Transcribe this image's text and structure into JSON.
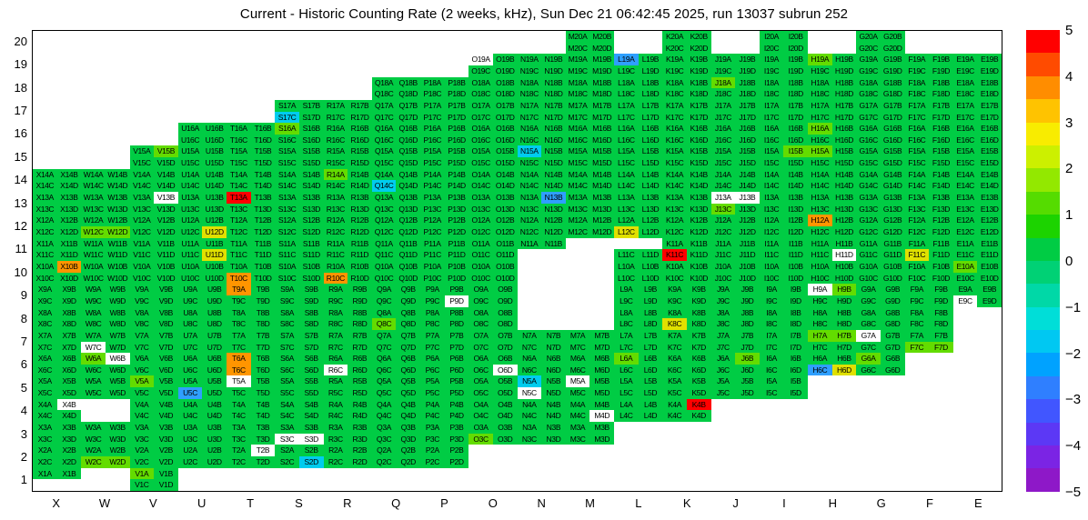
{
  "chart_data": {
    "type": "heatmap",
    "title": "Current - Historic Counting Rate (2 weeks, kHz), Sun Dec 21 06:42:45 2025, run 13037 subrun 252",
    "x_categories": [
      "X",
      "W",
      "V",
      "U",
      "T",
      "S",
      "R",
      "Q",
      "P",
      "O",
      "N",
      "M",
      "L",
      "K",
      "J",
      "I",
      "H",
      "G",
      "F",
      "E"
    ],
    "y_categories": [
      20,
      19,
      18,
      17,
      16,
      15,
      14,
      13,
      12,
      11,
      10,
      9,
      8,
      7,
      6,
      5,
      4,
      3,
      2,
      1
    ],
    "zlim": [
      -5,
      5
    ],
    "grid_on": false,
    "legend_position": "right-colorbar",
    "sub_letters": [
      "A",
      "B",
      "C",
      "D"
    ],
    "palette": {
      "g": "#00cc44",
      "G": "#63dc00",
      "y": "#e0e000",
      "o": "#ff9500",
      "r": "#ff0000",
      "c": "#00ccee",
      "b": "#2f9fff",
      "w": "#ffffff"
    },
    "palette_values_khz": {
      "g": 0,
      "G": 0.7,
      "y": 1.5,
      "o": 3.5,
      "r": 5,
      "c": -1.5,
      "b": -2.5,
      "w": null
    },
    "colorbar": {
      "tick_labels": [
        "5",
        "4",
        "3",
        "2",
        "1",
        "0",
        "−1",
        "−2",
        "−3",
        "−4",
        "−5"
      ],
      "bands_top_to_bottom": [
        "#ff0000",
        "#ff4b00",
        "#ff8d00",
        "#ffc300",
        "#f8ec00",
        "#ccf000",
        "#93e800",
        "#55dc00",
        "#1cd300",
        "#00cc44",
        "#00d175",
        "#00d8a7",
        "#00ded8",
        "#00c8f2",
        "#00a2ff",
        "#2f7fff",
        "#4156ff",
        "#5c38f5",
        "#7b24e4",
        "#8e18c8"
      ]
    },
    "cells": {
      "20": {
        "M": "gggg",
        "K": "gggg",
        "I": "gggg",
        "G": "gggg"
      },
      "19": {
        "O": "wggg",
        "N": "gggg",
        "M": "gggg",
        "L": "bggg",
        "K": "gggg",
        "J": "gggg",
        "I": "gggg",
        "H": "Gggg",
        "G": "gggg",
        "F": "gggg",
        "E": "gggg"
      },
      "18": {
        "Q": "gggg",
        "P": "gggg",
        "O": "gggg",
        "N": "gggg",
        "M": "gggg",
        "L": "gggg",
        "K": "gggg",
        "J": "Gggg",
        "I": "gggg",
        "H": "gggg",
        "G": "gggg",
        "F": "gggg",
        "E": "gggg"
      },
      "17": {
        "S": "ggcg",
        "R": "gggg",
        "Q": "gggg",
        "P": "gggg",
        "O": "gggg",
        "N": "gggg",
        "M": "gggg",
        "L": "gggg",
        "K": "gggg",
        "J": "gggg",
        "I": "gggg",
        "H": "gggg",
        "G": "gggg",
        "F": "gggg",
        "E": "gggg"
      },
      "16": {
        "U": "gggg",
        "T": "gggg",
        "S": "Gggg",
        "R": "gggg",
        "Q": "gggg",
        "P": "gggg",
        "O": "gggg",
        "N": "gggg",
        "M": "gggg",
        "L": "gggg",
        "K": "gggg",
        "J": "gggg",
        "I": "gggg",
        "H": "Gggg",
        "G": "gggg",
        "F": "gggg",
        "E": "gggg"
      },
      "15": {
        "V": "gGgg",
        "U": "gggg",
        "T": "gggg",
        "S": "gggg",
        "R": "gggg",
        "Q": "gggg",
        "P": "gggg",
        "O": "gggg",
        "N": "cggg",
        "M": "gggg",
        "L": "gggg",
        "K": "gggg",
        "J": "gggg",
        "I": "gGgg",
        "H": "Gggg",
        "G": "gggg",
        "F": "gggg",
        "E": "gggg"
      },
      "14": {
        "X": "gggg",
        "W": "gggg",
        "V": "gggg",
        "U": "gggg",
        "T": "gggg",
        "S": "gggg",
        "R": "Gggg",
        "Q": "ggcg",
        "P": "gggg",
        "O": "gggg",
        "N": "gggg",
        "M": "gggg",
        "L": "gggg",
        "K": "gggg",
        "J": "gggg",
        "I": "gggg",
        "H": "gggg",
        "G": "gggg",
        "F": "gggg",
        "E": "gggg"
      },
      "13": {
        "X": "gggg",
        "W": "gggg",
        "V": "gwgg",
        "U": "gggg",
        "T": "rggg",
        "S": "gggg",
        "R": "gggg",
        "Q": "gggg",
        "P": "gggg",
        "O": "gggg",
        "N": "gbgg",
        "M": "gggg",
        "L": "gggg",
        "K": "gggg",
        "J": "wwGg",
        "I": "gggg",
        "H": "gggg",
        "G": "gggg",
        "F": "gggg",
        "E": "gggg"
      },
      "12": {
        "X": "gggg",
        "W": "ggGG",
        "V": "gggg",
        "U": "gggy",
        "T": "gggg",
        "S": "gggg",
        "R": "gggg",
        "Q": "gggg",
        "P": "gggg",
        "O": "gggg",
        "N": "gggg",
        "M": "gggg",
        "L": "ggyg",
        "K": "gggg",
        "J": "gggg",
        "I": "gggg",
        "H": "oggg",
        "G": "gggg",
        "F": "gggg",
        "E": "gggg"
      },
      "11": {
        "X": "gggg",
        "W": "gggg",
        "V": "gggg",
        "U": "gggy",
        "T": "gggg",
        "S": "gggg",
        "R": "gggg",
        "Q": "gggg",
        "P": "gggg",
        "O": "gggg",
        "N": "gg..",
        "L": "..gg",
        "K": "ggrg",
        "J": "gggg",
        "I": "gggg",
        "H": "gggw",
        "G": "gggg",
        "F": "ggyg",
        "E": "gggg"
      },
      "10": {
        "X": "gogg",
        "W": "gggg",
        "V": "gggg",
        "U": "gggg",
        "T": "ggog",
        "S": "gggg",
        "R": "ggog",
        "Q": "gggg",
        "P": "gggg",
        "O": "gggg",
        "L": "gggg",
        "K": "gggg",
        "J": "gggg",
        "I": "gggg",
        "H": "gggg",
        "G": "gggg",
        "F": "gggg",
        "E": "Gggg"
      },
      "9": {
        "X": "gggg",
        "W": "gggg",
        "V": "gggg",
        "U": "gggg",
        "T": "oggg",
        "S": "gggg",
        "R": "gggg",
        "Q": "gggg",
        "P": "gggw",
        "O": "gggg",
        "L": "gggg",
        "K": "gggg",
        "J": "gggg",
        "I": "gggg",
        "H": "wGgg",
        "G": "gggg",
        "F": "gggg",
        "E": "ggwg"
      },
      "8": {
        "X": "gggg",
        "W": "gggg",
        "V": "gggg",
        "U": "gggg",
        "T": "gggg",
        "S": "gggg",
        "R": "gggg",
        "Q": "ggGg",
        "P": "gggg",
        "O": "gggg",
        "L": "gggg",
        "K": "ggyg",
        "J": "gggg",
        "I": "gggg",
        "H": "gggg",
        "G": "gggg",
        "F": "gggg"
      },
      "7": {
        "X": "gggg",
        "W": "ggwg",
        "V": "gggg",
        "U": "gggg",
        "T": "gggg",
        "S": "gggg",
        "R": "gggg",
        "Q": "gggg",
        "P": "gggg",
        "O": "gggg",
        "N": "gggg",
        "M": "gggg",
        "L": "gggg",
        "K": "gggg",
        "J": "gggg",
        "I": "gggg",
        "H": "GGgg",
        "G": "wggg",
        "F": "ggGG"
      },
      "6": {
        "X": "gggg",
        "W": "Gwgg",
        "V": "gggg",
        "U": "gggg",
        "T": "ogog",
        "S": "gggg",
        "R": "ggwg",
        "Q": "gggg",
        "P": "gggg",
        "O": "gggw",
        "N": "gggg",
        "M": "gggg",
        "L": "Gggg",
        "K": "gggg",
        "J": "gGgg",
        "I": "gggg",
        "H": "ggby",
        "G": "Gggg"
      },
      "5": {
        "X": "gggg",
        "W": "gggg",
        "V": "Gggg",
        "U": "ggbg",
        "T": "wggg",
        "S": "gggg",
        "R": "gggg",
        "Q": "gggg",
        "P": "gggg",
        "O": "gggg",
        "N": "cgwg",
        "M": "wggg",
        "L": "gggg",
        "K": "gggg",
        "J": "gggg",
        "I": "gggg"
      },
      "4": {
        "X": "gwgg",
        "V": "gggg",
        "U": "gggg",
        "T": "gggg",
        "S": "gggg",
        "R": "gggg",
        "Q": "gggg",
        "P": "gggg",
        "O": "gggg",
        "N": "gggg",
        "M": "gggw",
        "L": "gggg",
        "K": "grgg"
      },
      "3": {
        "X": "gggg",
        "W": "gggg",
        "V": "gggg",
        "U": "gggg",
        "T": "gggg",
        "S": "ggww",
        "R": "gggg",
        "Q": "gggg",
        "P": "gggg",
        "O": "ggGg",
        "N": "gggg",
        "M": "gggg"
      },
      "2": {
        "X": "gggg",
        "W": "ggGG",
        "V": "gggg",
        "U": "gggg",
        "T": "gwgg",
        "S": "gggc",
        "R": "gggg",
        "Q": "gggg",
        "P": "gggg"
      },
      "1": {
        "X": "gg..",
        "V": "Gggg"
      }
    }
  }
}
